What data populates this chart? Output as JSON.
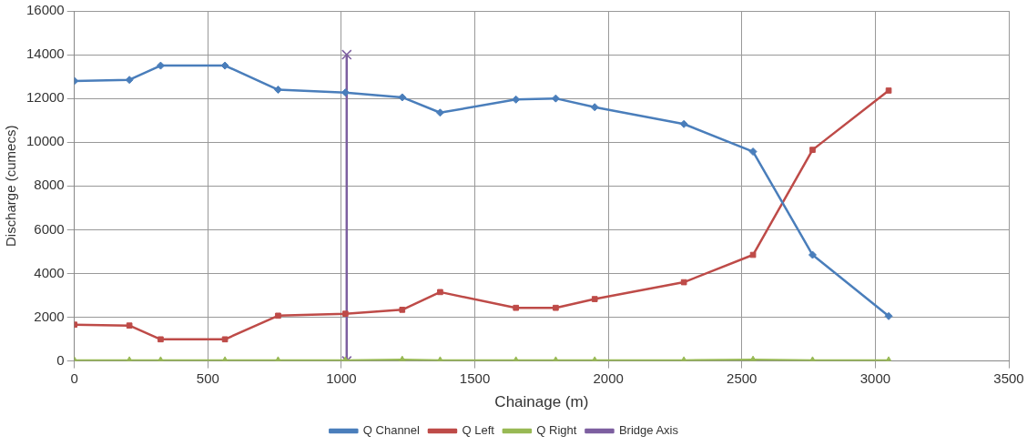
{
  "chart_data": {
    "type": "line",
    "xlabel": "Chainage (m)",
    "ylabel": "Discharge (cumecs)",
    "x": [
      0,
      206,
      323,
      564,
      763,
      1015,
      1228,
      1370,
      1654,
      1803,
      1949,
      2283,
      2542,
      2765,
      3050
    ],
    "series": [
      {
        "name": "Q Channel",
        "color": "#4a7ebb",
        "marker": "diamond",
        "values": [
          12800,
          12850,
          13500,
          13500,
          12400,
          12270,
          12050,
          11350,
          11950,
          12000,
          11600,
          10830,
          9570,
          4850,
          2050
        ]
      },
      {
        "name": "Q Left",
        "color": "#be4b48",
        "marker": "square",
        "values": [
          1660,
          1620,
          990,
          990,
          2070,
          2160,
          2340,
          3150,
          2430,
          2430,
          2830,
          3600,
          4850,
          9650,
          12360
        ]
      },
      {
        "name": "Q Right",
        "color": "#98b954",
        "marker": "triangle",
        "values": [
          30,
          30,
          30,
          30,
          30,
          30,
          60,
          30,
          30,
          30,
          30,
          30,
          60,
          30,
          30
        ]
      },
      {
        "name": "Bridge Axis",
        "color": "#7d5fa0",
        "marker": "cross",
        "x": [
          1020,
          1020
        ],
        "values": [
          0,
          14000
        ]
      }
    ],
    "xlim": [
      0,
      3500
    ],
    "xticks": [
      0,
      500,
      1000,
      1500,
      2000,
      2500,
      3000,
      3500
    ],
    "ylim": [
      0,
      16000
    ],
    "yticks": [
      0,
      2000,
      4000,
      6000,
      8000,
      10000,
      12000,
      14000,
      16000
    ],
    "grid": true,
    "legend": "bottom",
    "line_style": "solid"
  }
}
